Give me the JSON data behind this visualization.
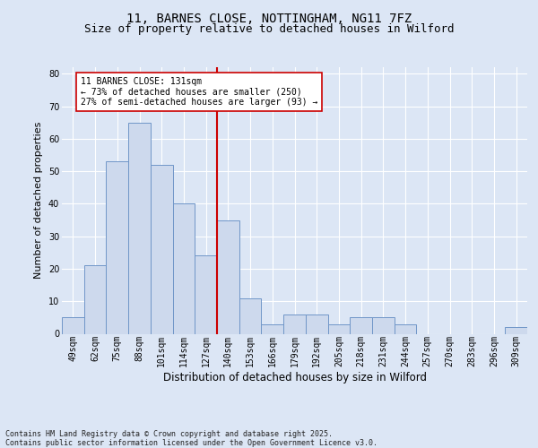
{
  "title1": "11, BARNES CLOSE, NOTTINGHAM, NG11 7FZ",
  "title2": "Size of property relative to detached houses in Wilford",
  "xlabel": "Distribution of detached houses by size in Wilford",
  "ylabel": "Number of detached properties",
  "categories": [
    "49sqm",
    "62sqm",
    "75sqm",
    "88sqm",
    "101sqm",
    "114sqm",
    "127sqm",
    "140sqm",
    "153sqm",
    "166sqm",
    "179sqm",
    "192sqm",
    "205sqm",
    "218sqm",
    "231sqm",
    "244sqm",
    "257sqm",
    "270sqm",
    "283sqm",
    "296sqm",
    "309sqm"
  ],
  "values": [
    5,
    21,
    53,
    65,
    52,
    40,
    24,
    35,
    11,
    3,
    6,
    6,
    3,
    5,
    5,
    3,
    0,
    0,
    0,
    0,
    2
  ],
  "bar_color": "#cdd9ed",
  "bar_edge_color": "#7096c8",
  "vline_x": 6.5,
  "vline_color": "#cc0000",
  "annotation_text": "11 BARNES CLOSE: 131sqm\n← 73% of detached houses are smaller (250)\n27% of semi-detached houses are larger (93) →",
  "annotation_box_color": "#ffffff",
  "annotation_box_edge": "#cc0000",
  "ylim": [
    0,
    82
  ],
  "yticks": [
    0,
    10,
    20,
    30,
    40,
    50,
    60,
    70,
    80
  ],
  "background_color": "#dce6f5",
  "footer_text": "Contains HM Land Registry data © Crown copyright and database right 2025.\nContains public sector information licensed under the Open Government Licence v3.0.",
  "grid_color": "#ffffff",
  "title_fontsize": 10,
  "subtitle_fontsize": 9,
  "tick_fontsize": 7,
  "ylabel_fontsize": 8,
  "xlabel_fontsize": 8.5,
  "annot_fontsize": 7,
  "footer_fontsize": 6
}
